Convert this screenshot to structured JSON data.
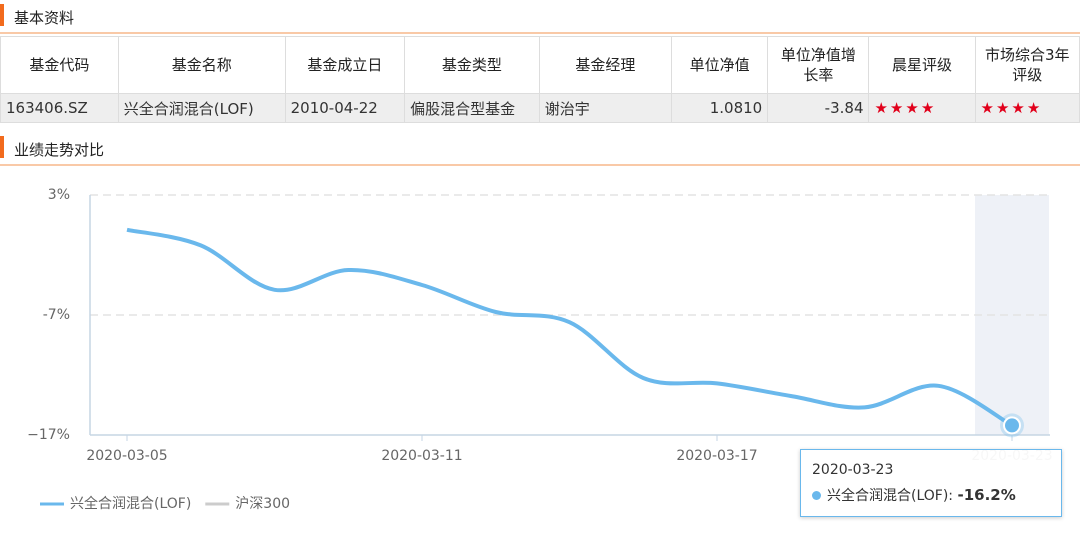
{
  "basic": {
    "title": "基本资料",
    "table": {
      "headers": [
        "基金代码",
        "基金名称",
        "基金成立日",
        "基金类型",
        "基金经理",
        "单位净值",
        "单位净值增长率",
        "晨星评级",
        "市场综合3年评级"
      ],
      "rows": [
        [
          "163406.SZ",
          "兴全合润混合(LOF)",
          "2010-04-22",
          "偏股混合型基金",
          "谢治宇",
          "1.0810",
          "-3.84",
          "★★★★",
          "★★★★"
        ]
      ]
    }
  },
  "performance": {
    "title": "业绩走势对比"
  },
  "chart_data": {
    "type": "line",
    "categories": [
      "2020-03-05",
      null,
      null,
      null,
      "2020-03-11",
      null,
      null,
      null,
      "2020-03-17",
      null,
      null,
      null,
      "2020-03-23"
    ],
    "series": [
      {
        "name": "兴全合润混合(LOF)",
        "color": "#6ab8ec",
        "values": [
          0.1,
          -1.2,
          -4.9,
          -3.25,
          -4.5,
          -6.75,
          -7.6,
          -12.25,
          -12.7,
          -13.75,
          -14.7,
          -12.9,
          -16.2
        ]
      },
      {
        "name": "沪深300",
        "color": "#cccccc",
        "values": [
          null,
          null,
          null,
          null,
          null,
          null,
          null,
          null,
          null,
          null,
          null,
          null,
          null
        ]
      }
    ],
    "ylim": [
      -17,
      3
    ],
    "yticks": [
      {
        "value": 3,
        "label": "3%"
      },
      {
        "value": -7,
        "label": "-7%"
      },
      {
        "value": -17,
        "label": "−17%"
      }
    ],
    "grid": true,
    "tooltip": {
      "label": "兴全合润混合(LOF):",
      "value": "-16.2%"
    }
  }
}
